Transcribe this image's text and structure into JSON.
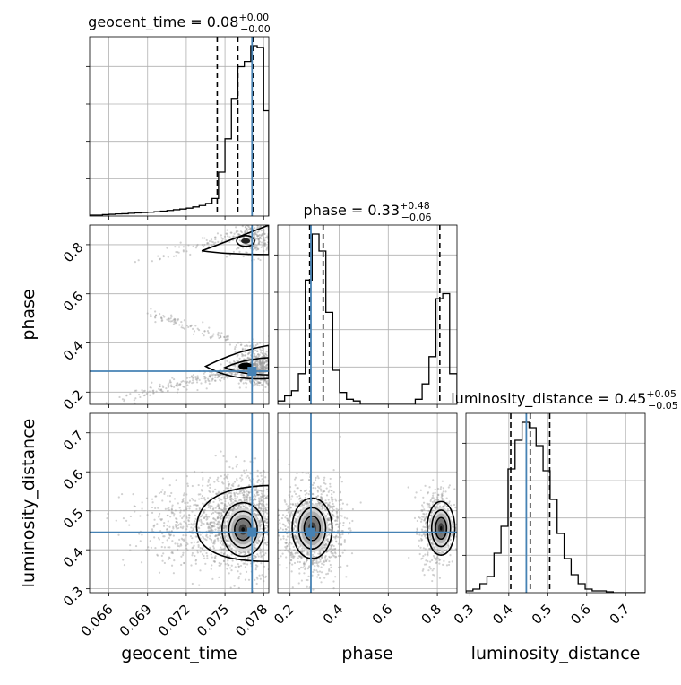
{
  "chart_data": {
    "type": "corner",
    "colors": {
      "truth": "#4682b4",
      "hist": "#000000",
      "density": "#000000"
    },
    "parameters": [
      {
        "name": "geocent_time",
        "title_prefix": "geocent_time = ",
        "median": "0.08",
        "plus": "+0.00",
        "minus": "−0.00",
        "range": [
          0.0645,
          0.0784
        ],
        "ticks": [
          0.066,
          0.069,
          0.072,
          0.075,
          0.078
        ],
        "tick_labels": [
          "0.066",
          "0.069",
          "0.072",
          "0.075",
          "0.078"
        ],
        "truth": 0.0771,
        "quantiles": [
          0.0744,
          0.076,
          0.0772
        ],
        "hist_edges": [
          0.0645,
          0.065,
          0.0655,
          0.066,
          0.0665,
          0.067,
          0.0675,
          0.068,
          0.0685,
          0.069,
          0.0695,
          0.07,
          0.0705,
          0.071,
          0.0715,
          0.072,
          0.0725,
          0.073,
          0.0735,
          0.074,
          0.0745,
          0.075,
          0.0755,
          0.076,
          0.0765,
          0.077,
          0.0775,
          0.078,
          0.0784
        ],
        "hist_counts": [
          0.005,
          0.005,
          0.008,
          0.01,
          0.012,
          0.013,
          0.016,
          0.018,
          0.02,
          0.022,
          0.025,
          0.028,
          0.032,
          0.036,
          0.04,
          0.045,
          0.052,
          0.06,
          0.072,
          0.1,
          0.25,
          0.44,
          0.67,
          0.85,
          0.88,
          0.97,
          0.96,
          0.6
        ]
      },
      {
        "name": "phase",
        "title_prefix": "phase = ",
        "median": "0.33",
        "plus": "+0.48",
        "minus": "−0.06",
        "range": [
          0.15,
          0.88
        ],
        "ticks": [
          0.2,
          0.4,
          0.6,
          0.8
        ],
        "tick_labels": [
          "0.2",
          "0.4",
          "0.6",
          "0.8"
        ],
        "truth": 0.285,
        "quantiles": [
          0.28,
          0.335,
          0.81
        ],
        "hist_edges": [
          0.15,
          0.178,
          0.206,
          0.234,
          0.262,
          0.29,
          0.318,
          0.346,
          0.374,
          0.402,
          0.43,
          0.458,
          0.486,
          0.514,
          0.542,
          0.57,
          0.598,
          0.626,
          0.654,
          0.682,
          0.71,
          0.738,
          0.766,
          0.794,
          0.822,
          0.85,
          0.88
        ],
        "hist_counts": [
          0.02,
          0.05,
          0.08,
          0.18,
          0.73,
          1.0,
          0.9,
          0.54,
          0.2,
          0.07,
          0.03,
          0.02,
          0.0,
          0.0,
          0.0,
          0.0,
          0.0,
          0.0,
          0.0,
          0.0,
          0.03,
          0.12,
          0.28,
          0.62,
          0.65,
          0.18
        ]
      },
      {
        "name": "luminosity_distance",
        "title_prefix": "luminosity_distance = ",
        "median": "0.45",
        "plus": "+0.05",
        "minus": "−0.05",
        "range": [
          0.29,
          0.75
        ],
        "ticks": [
          0.3,
          0.4,
          0.5,
          0.6,
          0.7
        ],
        "tick_labels": [
          "0.3",
          "0.4",
          "0.5",
          "0.6",
          "0.7"
        ],
        "truth": 0.445,
        "quantiles": [
          0.405,
          0.455,
          0.505
        ],
        "hist_edges": [
          0.29,
          0.308,
          0.326,
          0.344,
          0.362,
          0.38,
          0.398,
          0.416,
          0.434,
          0.452,
          0.47,
          0.488,
          0.506,
          0.524,
          0.542,
          0.56,
          0.578,
          0.596,
          0.614,
          0.632,
          0.65,
          0.668,
          0.686,
          0.704,
          0.722,
          0.75
        ],
        "hist_counts": [
          0.01,
          0.02,
          0.05,
          0.09,
          0.22,
          0.37,
          0.69,
          0.85,
          0.95,
          0.92,
          0.82,
          0.68,
          0.52,
          0.33,
          0.19,
          0.1,
          0.05,
          0.02,
          0.01,
          0.01,
          0.005,
          0.0,
          0.0,
          0.0,
          0.0
        ]
      }
    ]
  }
}
